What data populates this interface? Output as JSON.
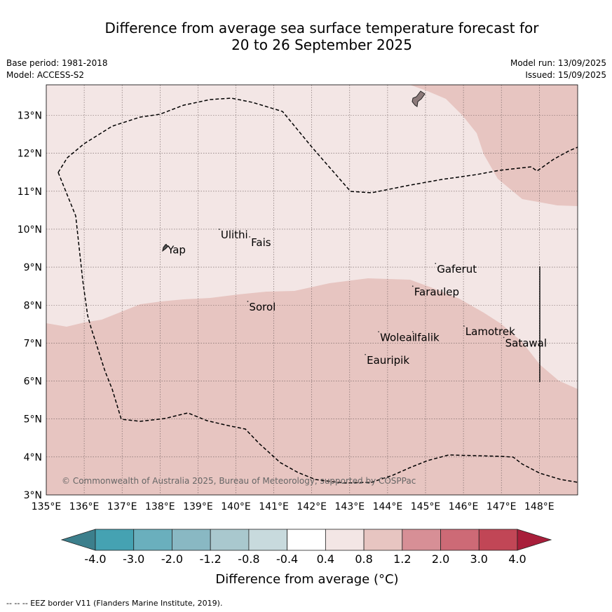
{
  "title_line1": "Difference from average sea surface temperature forecast for",
  "title_line2": "20 to 26 September 2025",
  "base_period": "Base period: 1981-2018",
  "model": "Model: ACCESS-S2",
  "model_run": "Model run: 13/09/2025",
  "issued": "Issued: 15/09/2025",
  "copyright": "© Commonwealth of Australia 2025, Bureau of Meteorology, supported by COSPPac",
  "footer": "-- -- -- EEZ border V11 (Flanders Marine Institute, 2019).",
  "map": {
    "lon_range": [
      135,
      149
    ],
    "lat_range": [
      3,
      13.8
    ],
    "lon_ticks": [
      "135°E",
      "136°E",
      "137°E",
      "138°E",
      "139°E",
      "140°E",
      "141°E",
      "142°E",
      "143°E",
      "144°E",
      "145°E",
      "146°E",
      "147°E",
      "148°E"
    ],
    "lat_ticks": [
      "3°N",
      "4°N",
      "5°N",
      "6°N",
      "7°N",
      "8°N",
      "9°N",
      "10°N",
      "11°N",
      "12°N",
      "13°N"
    ],
    "places": [
      {
        "name": "Yap",
        "lon": 138.2,
        "lat": 9.45
      },
      {
        "name": "Ulithi",
        "lon": 139.6,
        "lat": 9.85
      },
      {
        "name": "Fais",
        "lon": 140.4,
        "lat": 9.65
      },
      {
        "name": "Gaferut",
        "lon": 145.3,
        "lat": 8.95
      },
      {
        "name": "Faraulep",
        "lon": 144.7,
        "lat": 8.35
      },
      {
        "name": "Sorol",
        "lon": 140.35,
        "lat": 7.95
      },
      {
        "name": "Lamotrek",
        "lon": 146.05,
        "lat": 7.3
      },
      {
        "name": "Woleai",
        "lon": 143.8,
        "lat": 7.15
      },
      {
        "name": "Ifalik",
        "lon": 144.7,
        "lat": 7.15
      },
      {
        "name": "Satawal",
        "lon": 147.1,
        "lat": 7.0
      },
      {
        "name": "Eauripik",
        "lon": 143.45,
        "lat": 6.55
      }
    ],
    "anomaly_colors": {
      "0.4 to 0.8": "#f3e6e5",
      "0.8 to 1.2": "#e7c5c1"
    }
  },
  "colorbar": {
    "label": "Difference from average (°C)",
    "ticks": [
      "-4.0",
      "-3.0",
      "-2.0",
      "-1.2",
      "-0.8",
      "-0.4",
      "0.4",
      "0.8",
      "1.2",
      "2.0",
      "3.0",
      "4.0"
    ],
    "colors": [
      "#3c7f8c",
      "#45a2b2",
      "#6aafbd",
      "#89b8c3",
      "#a9c8ce",
      "#c8dadd",
      "#ffffff",
      "#f3e6e5",
      "#e7c5c1",
      "#d78f96",
      "#cd6a76",
      "#c14656",
      "#a81e3a"
    ]
  }
}
